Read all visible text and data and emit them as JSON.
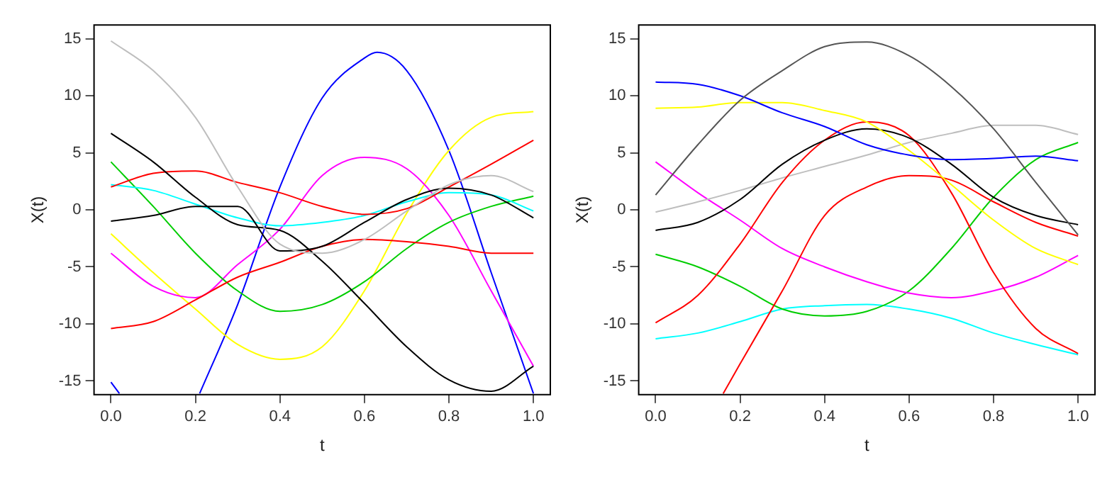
{
  "chart_data": [
    {
      "type": "line",
      "xlabel": "t",
      "ylabel": "X(t)",
      "x": [
        0,
        0.1,
        0.2,
        0.3,
        0.4,
        0.5,
        0.6,
        0.7,
        0.8,
        0.9,
        1.0
      ],
      "xlim": [
        -0.04,
        1.04
      ],
      "ylim": [
        -16.2,
        16.2
      ],
      "xticks": [
        {
          "value": 0,
          "label": "0.0"
        },
        {
          "value": 0.2,
          "label": "0.2"
        },
        {
          "value": 0.4,
          "label": "0.4"
        },
        {
          "value": 0.6,
          "label": "0.6"
        },
        {
          "value": 0.8,
          "label": "0.8"
        },
        {
          "value": 1,
          "label": "1.0"
        }
      ],
      "yticks": [
        -15,
        -10,
        -5,
        0,
        5,
        10,
        15
      ],
      "grid": false,
      "legend": false,
      "marker": "none",
      "line_style": "solid",
      "series": [
        {
          "color": "#bebebe",
          "values": [
            14.8,
            12.2,
            8.1,
            2.0,
            -3.0,
            -3.8,
            -2.6,
            -0.1,
            2.2,
            3.0,
            1.6
          ]
        },
        {
          "color": "#000000",
          "values": [
            6.7,
            4.2,
            1.1,
            -1.3,
            -1.8,
            -4.5,
            -8.2,
            -12.0,
            -14.9,
            -15.9,
            -13.7
          ]
        },
        {
          "color": "#000000",
          "values": [
            -1.0,
            -0.5,
            0.3,
            0.3,
            -3.6,
            -3.2,
            -1.1,
            0.9,
            1.9,
            1.3,
            -0.7
          ]
        },
        {
          "color": "#ff0000",
          "values": [
            2.0,
            3.2,
            3.4,
            2.4,
            1.5,
            0.3,
            -0.4,
            0.1,
            2.0,
            4.0,
            6.1
          ]
        },
        {
          "color": "#ff0000",
          "values": [
            -10.4,
            -9.8,
            -7.9,
            -5.9,
            -4.6,
            -3.2,
            -2.6,
            -2.8,
            -3.2,
            -3.8,
            -3.8
          ]
        },
        {
          "color": "#00ffff",
          "values": [
            2.2,
            1.7,
            0.5,
            -0.7,
            -1.4,
            -1.1,
            -0.5,
            0.7,
            1.5,
            1.3,
            -0.1
          ]
        },
        {
          "color": "#00cd00",
          "values": [
            4.2,
            0.3,
            -3.8,
            -7.1,
            -8.9,
            -8.3,
            -6.3,
            -3.4,
            -1.1,
            0.3,
            1.2
          ]
        },
        {
          "color": "#ff00ff",
          "values": [
            -3.8,
            -6.7,
            -7.7,
            -4.8,
            -1.7,
            3.0,
            4.6,
            3.6,
            -0.5,
            -7.1,
            -13.7
          ]
        },
        {
          "color": "#ffff00",
          "values": [
            -2.1,
            -5.5,
            -8.7,
            -11.8,
            -13.1,
            -12.0,
            -7.1,
            -0.3,
            5.2,
            8.1,
            8.6
          ]
        },
        {
          "color": "#0000ff",
          "x": [
            0,
            0.02,
            0.1,
            0.21,
            0.3,
            0.4,
            0.5,
            0.6,
            0.63,
            0.7,
            0.8,
            0.9,
            1.0
          ],
          "values": [
            -15.1,
            -16.1,
            null,
            -16.1,
            -8.3,
            2.0,
            9.8,
            13.3,
            13.8,
            12.2,
            5.2,
            -5.5,
            -16.1
          ]
        }
      ]
    },
    {
      "type": "line",
      "xlabel": "t",
      "ylabel": "X(t)",
      "x": [
        0,
        0.1,
        0.2,
        0.3,
        0.4,
        0.5,
        0.6,
        0.7,
        0.8,
        0.9,
        1.0
      ],
      "xlim": [
        -0.04,
        1.04
      ],
      "ylim": [
        -16.2,
        16.2
      ],
      "xticks": [
        {
          "value": 0,
          "label": "0.0"
        },
        {
          "value": 0.2,
          "label": "0.2"
        },
        {
          "value": 0.4,
          "label": "0.4"
        },
        {
          "value": 0.6,
          "label": "0.6"
        },
        {
          "value": 0.8,
          "label": "0.8"
        },
        {
          "value": 1,
          "label": "1.0"
        }
      ],
      "yticks": [
        -15,
        -10,
        -5,
        0,
        5,
        10,
        15
      ],
      "grid": false,
      "legend": false,
      "marker": "none",
      "line_style": "solid",
      "series": [
        {
          "color": "#555555",
          "values": [
            1.3,
            5.7,
            9.6,
            12.2,
            14.3,
            14.7,
            13.5,
            10.8,
            7.1,
            2.4,
            -2.2
          ]
        },
        {
          "color": "#0000ff",
          "values": [
            11.2,
            11.0,
            10.0,
            8.5,
            7.3,
            5.7,
            4.8,
            4.4,
            4.5,
            4.7,
            4.3
          ]
        },
        {
          "color": "#ffff00",
          "values": [
            8.9,
            9.0,
            9.4,
            9.4,
            8.7,
            7.7,
            5.2,
            2.2,
            -0.9,
            -3.4,
            -4.8
          ]
        },
        {
          "color": "#000000",
          "values": [
            -1.8,
            -1.1,
            0.9,
            4.0,
            6.1,
            7.1,
            6.3,
            4.0,
            1.1,
            -0.5,
            -1.3
          ]
        },
        {
          "color": "#ff0000",
          "values": [
            -9.9,
            -7.5,
            -3.0,
            2.4,
            6.1,
            7.7,
            6.5,
            1.5,
            -5.5,
            -10.4,
            -12.6
          ]
        },
        {
          "color": "#ff0000",
          "x": [
            0.16,
            0.2,
            0.3,
            0.4,
            0.5,
            0.6,
            0.7,
            0.8,
            0.9,
            1.0
          ],
          "values": [
            -16.1,
            -13.5,
            -7.1,
            -0.5,
            2.0,
            3.0,
            2.6,
            0.7,
            -1.1,
            -2.3
          ]
        },
        {
          "color": "#bebebe",
          "values": [
            -0.2,
            0.7,
            1.7,
            2.8,
            3.8,
            4.8,
            5.9,
            6.7,
            7.4,
            7.4,
            6.6
          ]
        },
        {
          "color": "#ff00ff",
          "values": [
            4.2,
            1.5,
            -0.9,
            -3.4,
            -5.0,
            -6.3,
            -7.3,
            -7.7,
            -7.1,
            -5.9,
            -4.0
          ]
        },
        {
          "color": "#00cd00",
          "values": [
            -3.9,
            -5.0,
            -6.7,
            -8.7,
            -9.3,
            -8.9,
            -7.1,
            -3.4,
            1.1,
            4.4,
            5.9
          ]
        },
        {
          "color": "#00ffff",
          "values": [
            -11.3,
            -10.8,
            -9.8,
            -8.7,
            -8.4,
            -8.3,
            -8.7,
            -9.5,
            -10.8,
            -11.8,
            -12.7
          ]
        }
      ]
    }
  ]
}
